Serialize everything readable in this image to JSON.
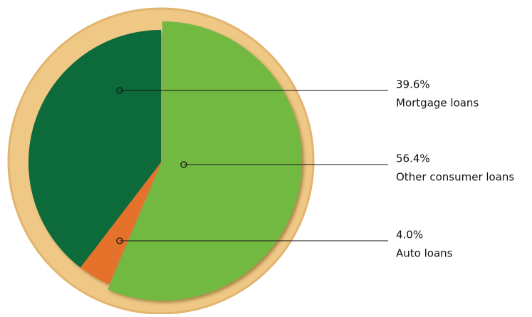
{
  "chart_data": {
    "type": "pie",
    "categories": [
      "Other consumer loans",
      "Auto loans",
      "Mortgage loans"
    ],
    "values": [
      56.4,
      4.0,
      39.6
    ],
    "value_labels": [
      "56.4%",
      "4.0%",
      "39.6%"
    ],
    "colors": [
      "#72b943",
      "#e5722a",
      "#0f6b3a"
    ]
  }
}
